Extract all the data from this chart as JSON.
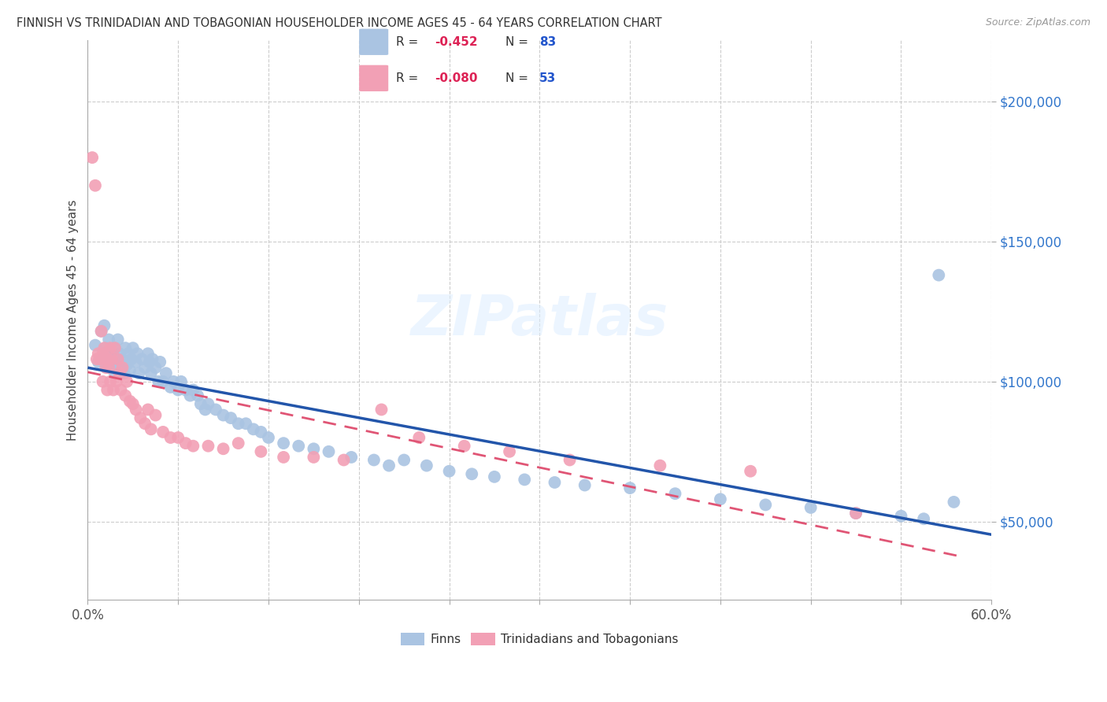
{
  "title": "FINNISH VS TRINIDADIAN AND TOBAGONIAN HOUSEHOLDER INCOME AGES 45 - 64 YEARS CORRELATION CHART",
  "source": "Source: ZipAtlas.com",
  "ylabel": "Householder Income Ages 45 - 64 years",
  "xlim": [
    0.0,
    0.6
  ],
  "ylim": [
    22000,
    222000
  ],
  "yticks": [
    50000,
    100000,
    150000,
    200000
  ],
  "ytick_labels": [
    "$50,000",
    "$100,000",
    "$150,000",
    "$200,000"
  ],
  "xticks": [
    0.0,
    0.06,
    0.12,
    0.18,
    0.24,
    0.3,
    0.36,
    0.42,
    0.48,
    0.54,
    0.6
  ],
  "r_finns": -0.452,
  "n_finns": 83,
  "r_tt": -0.08,
  "n_tt": 53,
  "watermark": "ZIPatlas",
  "blue_color": "#aac4e2",
  "pink_color": "#f2a0b5",
  "blue_line_color": "#2255aa",
  "pink_line_color": "#e05575",
  "finns_x": [
    0.005,
    0.007,
    0.009,
    0.01,
    0.011,
    0.012,
    0.013,
    0.014,
    0.015,
    0.016,
    0.017,
    0.018,
    0.019,
    0.02,
    0.02,
    0.021,
    0.022,
    0.023,
    0.024,
    0.025,
    0.026,
    0.027,
    0.028,
    0.029,
    0.03,
    0.032,
    0.033,
    0.034,
    0.036,
    0.038,
    0.04,
    0.041,
    0.042,
    0.043,
    0.045,
    0.047,
    0.048,
    0.05,
    0.052,
    0.055,
    0.057,
    0.06,
    0.062,
    0.065,
    0.068,
    0.07,
    0.073,
    0.075,
    0.078,
    0.08,
    0.085,
    0.09,
    0.095,
    0.1,
    0.105,
    0.11,
    0.115,
    0.12,
    0.13,
    0.14,
    0.15,
    0.16,
    0.175,
    0.19,
    0.2,
    0.21,
    0.225,
    0.24,
    0.255,
    0.27,
    0.29,
    0.31,
    0.33,
    0.36,
    0.39,
    0.42,
    0.45,
    0.48,
    0.51,
    0.54,
    0.555,
    0.565,
    0.575
  ],
  "finns_y": [
    113000,
    107000,
    118000,
    108000,
    120000,
    112000,
    105000,
    115000,
    110000,
    108000,
    104000,
    112000,
    107000,
    115000,
    108000,
    110000,
    105000,
    108000,
    103000,
    112000,
    106000,
    110000,
    104000,
    108000,
    112000,
    107000,
    110000,
    103000,
    108000,
    105000,
    110000,
    107000,
    103000,
    108000,
    105000,
    100000,
    107000,
    100000,
    103000,
    98000,
    100000,
    97000,
    100000,
    97000,
    95000,
    97000,
    95000,
    92000,
    90000,
    92000,
    90000,
    88000,
    87000,
    85000,
    85000,
    83000,
    82000,
    80000,
    78000,
    77000,
    76000,
    75000,
    73000,
    72000,
    70000,
    72000,
    70000,
    68000,
    67000,
    66000,
    65000,
    64000,
    63000,
    62000,
    60000,
    58000,
    56000,
    55000,
    53000,
    52000,
    51000,
    138000,
    57000
  ],
  "tt_x": [
    0.003,
    0.005,
    0.006,
    0.007,
    0.008,
    0.009,
    0.01,
    0.01,
    0.011,
    0.012,
    0.013,
    0.013,
    0.014,
    0.015,
    0.015,
    0.016,
    0.017,
    0.018,
    0.019,
    0.02,
    0.021,
    0.022,
    0.023,
    0.025,
    0.026,
    0.028,
    0.03,
    0.032,
    0.035,
    0.038,
    0.04,
    0.042,
    0.045,
    0.05,
    0.055,
    0.06,
    0.065,
    0.07,
    0.08,
    0.09,
    0.1,
    0.115,
    0.13,
    0.15,
    0.17,
    0.195,
    0.22,
    0.25,
    0.28,
    0.32,
    0.38,
    0.44,
    0.51
  ],
  "tt_y": [
    180000,
    170000,
    108000,
    110000,
    108000,
    118000,
    110000,
    100000,
    112000,
    105000,
    108000,
    97000,
    105000,
    112000,
    100000,
    108000,
    97000,
    112000,
    100000,
    108000,
    103000,
    97000,
    105000,
    95000,
    100000,
    93000,
    92000,
    90000,
    87000,
    85000,
    90000,
    83000,
    88000,
    82000,
    80000,
    80000,
    78000,
    77000,
    77000,
    76000,
    78000,
    75000,
    73000,
    73000,
    72000,
    90000,
    80000,
    77000,
    75000,
    72000,
    70000,
    68000,
    53000
  ]
}
